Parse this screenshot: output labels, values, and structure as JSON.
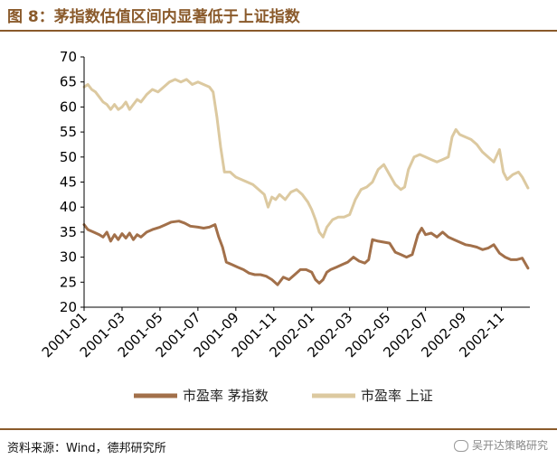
{
  "header": {
    "title": "图 8：茅指数估值区间内显著低于上证指数"
  },
  "footer": {
    "source": "资料来源：Wind，德邦研究所",
    "watermark": "吴开达策略研究"
  },
  "colors": {
    "accent": "#8a5a2b",
    "series_1": "#a2704a",
    "series_2": "#dcc9a0",
    "axis": "#000000"
  },
  "chart_data": {
    "type": "line",
    "title": "茅指数估值区间内显著低于上证指数",
    "xlabel": "",
    "ylabel": "",
    "ylim": [
      20,
      70
    ],
    "yticks": [
      20,
      25,
      30,
      35,
      40,
      45,
      50,
      55,
      60,
      65,
      70
    ],
    "xlim": [
      0,
      23.5
    ],
    "xticks": [
      {
        "pos": 0,
        "label": "2001-01"
      },
      {
        "pos": 2,
        "label": "2001-03"
      },
      {
        "pos": 4,
        "label": "2001-05"
      },
      {
        "pos": 6,
        "label": "2001-07"
      },
      {
        "pos": 8,
        "label": "2001-09"
      },
      {
        "pos": 10,
        "label": "2001-11"
      },
      {
        "pos": 12,
        "label": "2002-01"
      },
      {
        "pos": 14,
        "label": "2002-03"
      },
      {
        "pos": 16,
        "label": "2002-05"
      },
      {
        "pos": 18,
        "label": "2002-07"
      },
      {
        "pos": 20,
        "label": "2002-09"
      },
      {
        "pos": 22,
        "label": "2002-11"
      }
    ],
    "legend": "bottom",
    "series": [
      {
        "name": "市盈率 茅指数",
        "x": [
          0,
          0.2,
          0.5,
          0.8,
          1.0,
          1.2,
          1.4,
          1.6,
          1.8,
          2.0,
          2.2,
          2.4,
          2.6,
          2.8,
          3.0,
          3.3,
          3.6,
          4.0,
          4.3,
          4.6,
          5.0,
          5.3,
          5.6,
          6.0,
          6.3,
          6.6,
          6.9,
          7.1,
          7.3,
          7.5,
          7.8,
          8.1,
          8.4,
          8.7,
          9.0,
          9.3,
          9.6,
          9.9,
          10.2,
          10.5,
          10.8,
          11.1,
          11.4,
          11.7,
          12.0,
          12.2,
          12.4,
          12.6,
          12.8,
          13.0,
          13.3,
          13.6,
          13.9,
          14.2,
          14.5,
          14.8,
          15.0,
          15.2,
          15.5,
          15.8,
          16.1,
          16.4,
          16.7,
          17.0,
          17.3,
          17.6,
          17.8,
          18.0,
          18.3,
          18.6,
          18.9,
          19.2,
          19.5,
          19.8,
          20.1,
          20.4,
          20.7,
          21.0,
          21.3,
          21.6,
          21.9,
          22.2,
          22.5,
          22.8,
          23.1,
          23.4
        ],
        "values": [
          36.5,
          35.5,
          35,
          34.5,
          34,
          35,
          33.2,
          34.5,
          33.5,
          34.7,
          33.8,
          34.8,
          33.5,
          34.5,
          34,
          35,
          35.5,
          36,
          36.5,
          37,
          37.2,
          36.8,
          36.2,
          36,
          35.8,
          36,
          36.5,
          34,
          32,
          29,
          28.5,
          28,
          27.5,
          26.8,
          26.5,
          26.5,
          26.2,
          25.5,
          24.5,
          26,
          25.5,
          26.5,
          27.5,
          27.5,
          27,
          25.5,
          24.8,
          25.5,
          27,
          27.5,
          28,
          28.5,
          29,
          30,
          29.2,
          28.8,
          29.5,
          33.5,
          33.2,
          33,
          32.8,
          31,
          30.5,
          30,
          30.5,
          34.5,
          35.8,
          34.5,
          34.8,
          34,
          35,
          34,
          33.5,
          33,
          32.5,
          32.3,
          32,
          31.5,
          31.8,
          32.5,
          30.8,
          30,
          29.5,
          29.5,
          29.8,
          27.8
        ]
      },
      {
        "name": "市盈率 上证",
        "x": [
          0,
          0.2,
          0.4,
          0.6,
          0.8,
          1.0,
          1.2,
          1.4,
          1.6,
          1.8,
          2.0,
          2.2,
          2.4,
          2.6,
          2.8,
          3.0,
          3.3,
          3.6,
          3.9,
          4.2,
          4.5,
          4.8,
          5.1,
          5.4,
          5.7,
          6.0,
          6.3,
          6.6,
          6.8,
          7.0,
          7.2,
          7.4,
          7.7,
          8.0,
          8.3,
          8.6,
          8.9,
          9.2,
          9.5,
          9.7,
          9.9,
          10.1,
          10.3,
          10.6,
          10.9,
          11.2,
          11.5,
          11.8,
          12.0,
          12.2,
          12.4,
          12.6,
          12.8,
          13.1,
          13.4,
          13.7,
          14.0,
          14.3,
          14.6,
          14.9,
          15.2,
          15.5,
          15.8,
          16.1,
          16.4,
          16.7,
          16.9,
          17.1,
          17.4,
          17.7,
          18.0,
          18.3,
          18.6,
          18.9,
          19.2,
          19.4,
          19.6,
          19.8,
          20.1,
          20.4,
          20.7,
          21.0,
          21.3,
          21.6,
          21.9,
          22.1,
          22.3,
          22.6,
          22.9,
          23.1,
          23.4
        ],
        "values": [
          64,
          64.5,
          63.5,
          63,
          62,
          61,
          60.5,
          59.5,
          60.5,
          59.5,
          60,
          61,
          59.5,
          60.5,
          61.5,
          61,
          62.5,
          63.5,
          63,
          64,
          65,
          65.5,
          65,
          65.5,
          64.5,
          65,
          64.5,
          64,
          63,
          58,
          52,
          47,
          47,
          46,
          45.5,
          45,
          44.5,
          43.5,
          42.5,
          40,
          42,
          41.5,
          42.5,
          41.5,
          43,
          43.5,
          42.5,
          41,
          39.5,
          37.5,
          35,
          34,
          36,
          37.5,
          38,
          38,
          38.5,
          41.5,
          43.5,
          44,
          45,
          47.5,
          48.5,
          46.5,
          44.5,
          43.5,
          44,
          47.5,
          50,
          50.5,
          50,
          49.5,
          49,
          49.5,
          50,
          54,
          55.5,
          54.5,
          54,
          53.5,
          52.5,
          51,
          50,
          49,
          51.5,
          47,
          45.5,
          46.5,
          47,
          46,
          43.8
        ]
      }
    ]
  }
}
